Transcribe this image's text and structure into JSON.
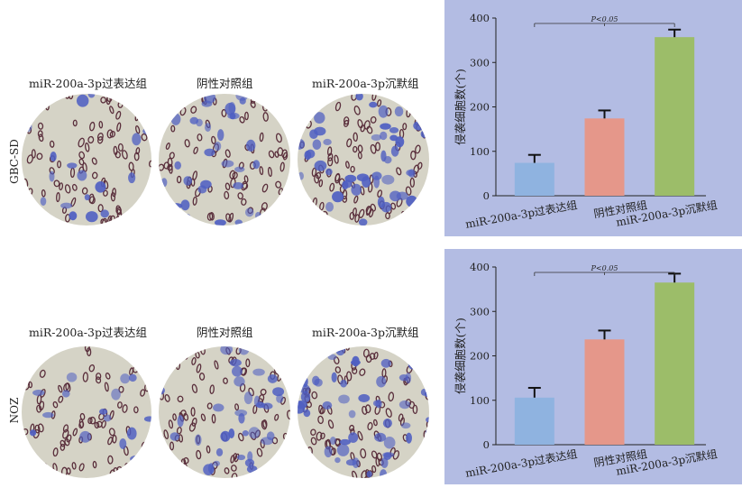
{
  "colors": {
    "panel_bg": "#b3bce3",
    "bar_overexpression": "#8fb3e0",
    "bar_negative_control": "#e5978a",
    "bar_silencing": "#9cbd69",
    "dish_bg": "#d5d3c6",
    "cell_violet": "#4f5fc2",
    "pore_dark": "#5a2f3c"
  },
  "rows": [
    {
      "cell_line": "GBC-SD",
      "images": [
        {
          "caption": "miR-200a-3p过表达组"
        },
        {
          "caption": "阴性对照组"
        },
        {
          "caption": "miR-200a-3p沉默组"
        }
      ]
    },
    {
      "cell_line": "NOZ",
      "images": [
        {
          "caption": "miR-200a-3p过表达组"
        },
        {
          "caption": "阴性对照组"
        },
        {
          "caption": "miR-200a-3p沉默组"
        }
      ]
    }
  ],
  "chart_data": [
    {
      "type": "bar",
      "categories": [
        "miR-200a-3p过表达组",
        "阴性对照组",
        "miR-200a-3p沉默组"
      ],
      "values": [
        74,
        174,
        357
      ],
      "error": [
        18,
        18,
        17
      ],
      "ylabel": "侵袭细胞数(个)",
      "ylim": [
        0,
        400
      ],
      "yticks": [
        "0",
        "100",
        "200",
        "300",
        "400"
      ],
      "annotation": "P<0.05",
      "grid": false
    },
    {
      "type": "bar",
      "categories": [
        "miR-200a-3p过表达组",
        "阴性对照组",
        "miR-200a-3p沉默组"
      ],
      "values": [
        106,
        237,
        365
      ],
      "error": [
        22,
        20,
        20
      ],
      "ylabel": "侵袭细胞数(个)",
      "ylim": [
        0,
        400
      ],
      "yticks": [
        "0",
        "100",
        "200",
        "300",
        "400"
      ],
      "annotation": "P<0.05",
      "grid": false
    }
  ]
}
